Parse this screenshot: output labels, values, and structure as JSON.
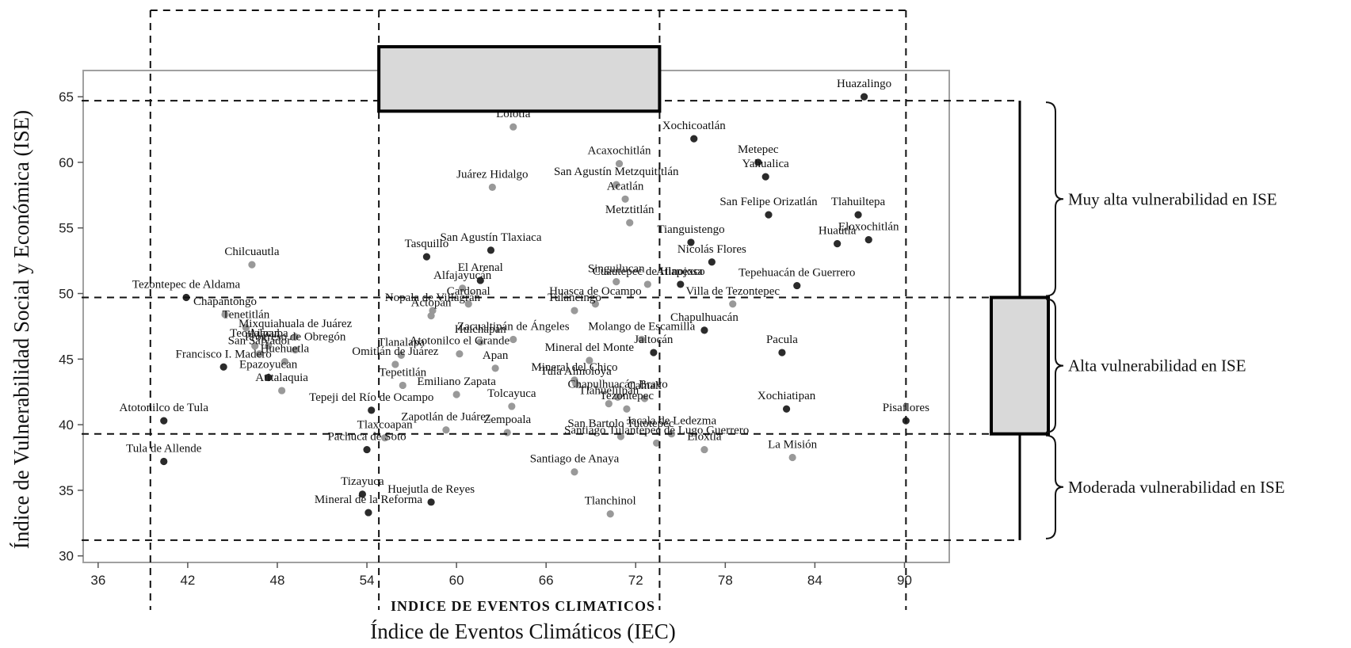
{
  "chart_data": {
    "type": "scatter",
    "title": "",
    "xlabel": "Índice de Eventos Climáticos (IEC)",
    "xlabel_inner": "INDICE DE EVENTOS CLIMATICOS",
    "ylabel": "Índice de Vulnerabilidad Social y Económica (ISE)",
    "xlim": [
      35,
      93
    ],
    "ylim": [
      29.5,
      67
    ],
    "xticks": [
      36,
      42,
      48,
      54,
      60,
      66,
      72,
      78,
      84,
      90
    ],
    "yticks": [
      30,
      35,
      40,
      45,
      50,
      55,
      60,
      65
    ],
    "grid": false,
    "thresholds": {
      "ise": [
        31.2,
        39.3,
        49.7,
        64.7
      ],
      "iec_dashed": [
        39.5,
        54.8,
        73.6,
        90.1
      ]
    },
    "bands": [
      {
        "label": "Muy alta vulnerabilidad en ISE",
        "range": [
          49.7,
          64.7
        ]
      },
      {
        "label": "Alta vulnerabilidad en ISE",
        "range": [
          39.3,
          49.7
        ]
      },
      {
        "label": "Moderada vulnerabilidad en ISE",
        "range": [
          31.2,
          39.3
        ]
      }
    ],
    "colors": {
      "dark": "#2b2b2b",
      "light": "#999999",
      "box_fill": "#d9d9d9",
      "frame": "#a0a0a0"
    },
    "points": [
      {
        "name": "Huazalingo",
        "x": 87.3,
        "y": 65.0,
        "shade": "dark"
      },
      {
        "name": "Xochicoatlán",
        "x": 75.9,
        "y": 61.8,
        "shade": "dark"
      },
      {
        "name": "Metepec",
        "x": 80.2,
        "y": 60.0,
        "shade": "dark"
      },
      {
        "name": "Yahualica",
        "x": 80.7,
        "y": 58.9,
        "shade": "dark"
      },
      {
        "name": "Acaxochitlán",
        "x": 70.9,
        "y": 59.9,
        "shade": "light"
      },
      {
        "name": "Acatlán",
        "x": 71.3,
        "y": 57.2,
        "shade": "light"
      },
      {
        "name": "Metztitlán",
        "x": 71.6,
        "y": 55.4,
        "shade": "light"
      },
      {
        "name": "San Felipe Orizatlán",
        "x": 80.9,
        "y": 56.0,
        "shade": "dark"
      },
      {
        "name": "Tlahuiltepa",
        "x": 86.9,
        "y": 56.0,
        "shade": "dark"
      },
      {
        "name": "Eloxochitlán",
        "x": 87.6,
        "y": 54.1,
        "shade": "dark"
      },
      {
        "name": "Huautla",
        "x": 85.5,
        "y": 53.8,
        "shade": "dark"
      },
      {
        "name": "Tianguistengo",
        "x": 75.7,
        "y": 53.9,
        "shade": "dark"
      },
      {
        "name": "Nicolás Flores",
        "x": 77.1,
        "y": 52.4,
        "shade": "dark"
      },
      {
        "name": "Tepehuacán de Guerrero",
        "x": 82.8,
        "y": 50.6,
        "shade": "dark"
      },
      {
        "name": "Atlapexco",
        "x": 75.0,
        "y": 50.7,
        "shade": "dark"
      },
      {
        "name": "Chilcuautla",
        "x": 46.3,
        "y": 52.2,
        "shade": "light"
      },
      {
        "name": "Tezontepec de Aldama",
        "x": 41.9,
        "y": 49.7,
        "shade": "dark"
      },
      {
        "name": "Juárez Hidalgo",
        "x": 62.4,
        "y": 58.1,
        "shade": "light"
      },
      {
        "name": "San Agustín Metzquititlán",
        "x": 70.7,
        "y": 58.3,
        "shade": "light"
      },
      {
        "name": "Tasquillo",
        "x": 58.0,
        "y": 52.8,
        "shade": "dark"
      },
      {
        "name": "San Agustín Tlaxiaca",
        "x": 62.3,
        "y": 53.3,
        "shade": "dark"
      },
      {
        "name": "El Arenal",
        "x": 61.6,
        "y": 51.0,
        "shade": "dark"
      },
      {
        "name": "Alfajayucán",
        "x": 60.4,
        "y": 50.4,
        "shade": "light"
      },
      {
        "name": "Singuilucan",
        "x": 70.7,
        "y": 50.9,
        "shade": "light"
      },
      {
        "name": "Cuautepec de Hinojosa",
        "x": 72.8,
        "y": 50.7,
        "shade": "light"
      },
      {
        "name": "Cardonal",
        "x": 60.8,
        "y": 49.2,
        "shade": "light"
      },
      {
        "name": "Huasca de Ocampo",
        "x": 69.3,
        "y": 49.2,
        "shade": "light"
      },
      {
        "name": "Tulancingo",
        "x": 67.9,
        "y": 48.7,
        "shade": "light"
      },
      {
        "name": "Nopala de Villagrán",
        "x": 58.4,
        "y": 48.7,
        "shade": "light"
      },
      {
        "name": "Actopan",
        "x": 58.3,
        "y": 48.3,
        "shade": "light"
      },
      {
        "name": "Chapantongo",
        "x": 44.5,
        "y": 48.4,
        "shade": "light"
      },
      {
        "name": "Tenetitlán",
        "x": 45.9,
        "y": 47.4,
        "shade": "light"
      },
      {
        "name": "Mixquiahuala de Juárez",
        "x": 49.2,
        "y": 46.7,
        "shade": "light"
      },
      {
        "name": "Teotlalpan",
        "x": 46.5,
        "y": 46.0,
        "shade": "light"
      },
      {
        "name": "Ajacuba",
        "x": 47.4,
        "y": 46.0,
        "shade": "light"
      },
      {
        "name": "Progreso de Obregón",
        "x": 49.2,
        "y": 45.7,
        "shade": "light"
      },
      {
        "name": "San Salvador",
        "x": 46.8,
        "y": 45.4,
        "shade": "light"
      },
      {
        "name": "Zacualtipán de Ángeles",
        "x": 63.8,
        "y": 46.5,
        "shade": "light"
      },
      {
        "name": "Huichapan",
        "x": 61.6,
        "y": 46.3,
        "shade": "light"
      },
      {
        "name": "Molango de Escamilla",
        "x": 72.4,
        "y": 46.5,
        "shade": "light"
      },
      {
        "name": "Tlanalapa",
        "x": 56.3,
        "y": 45.3,
        "shade": "light"
      },
      {
        "name": "Chapulhuacán",
        "x": 76.6,
        "y": 47.2,
        "shade": "dark"
      },
      {
        "name": "Villa de Tezontepec",
        "x": 78.5,
        "y": 49.2,
        "shade": "light"
      },
      {
        "name": "Pacula",
        "x": 81.8,
        "y": 45.5,
        "shade": "dark"
      },
      {
        "name": "Jaltocán",
        "x": 73.2,
        "y": 45.5,
        "shade": "dark"
      },
      {
        "name": "Atotonilco el Grande",
        "x": 60.2,
        "y": 45.4,
        "shade": "light"
      },
      {
        "name": "Francisco I. Madero",
        "x": 44.4,
        "y": 44.4,
        "shade": "dark"
      },
      {
        "name": "Huehuetla",
        "x": 48.5,
        "y": 44.8,
        "shade": "light"
      },
      {
        "name": "Omitlán de Juárez",
        "x": 55.9,
        "y": 44.6,
        "shade": "light"
      },
      {
        "name": "Mineral del Monte",
        "x": 68.9,
        "y": 44.9,
        "shade": "light"
      },
      {
        "name": "Apan",
        "x": 62.6,
        "y": 44.3,
        "shade": "light"
      },
      {
        "name": "Mineral del Chico",
        "x": 67.9,
        "y": 43.4,
        "shade": "light"
      },
      {
        "name": "Epazoyucan",
        "x": 47.4,
        "y": 43.6,
        "shade": "dark"
      },
      {
        "name": "Tepetitlán",
        "x": 56.4,
        "y": 43.0,
        "shade": "light"
      },
      {
        "name": "Emiliano Zapata",
        "x": 60.0,
        "y": 42.3,
        "shade": "light"
      },
      {
        "name": "Tula Almoloya",
        "x": 68.0,
        "y": 43.1,
        "shade": "light"
      },
      {
        "name": "Chapulhuacán Bravo",
        "x": 70.8,
        "y": 42.1,
        "shade": "light"
      },
      {
        "name": "Calnali",
        "x": 72.6,
        "y": 42.0,
        "shade": "light"
      },
      {
        "name": "Tlahuelilpan",
        "x": 70.2,
        "y": 41.6,
        "shade": "light"
      },
      {
        "name": "Xochiatipan",
        "x": 82.1,
        "y": 41.2,
        "shade": "dark"
      },
      {
        "name": "Atitalaquia",
        "x": 48.3,
        "y": 42.6,
        "shade": "light"
      },
      {
        "name": "Atotonilco de Tula",
        "x": 40.4,
        "y": 40.3,
        "shade": "dark"
      },
      {
        "name": "Tepeji del Río de Ocampo",
        "x": 54.3,
        "y": 41.1,
        "shade": "dark"
      },
      {
        "name": "Tolcayuca",
        "x": 63.7,
        "y": 41.4,
        "shade": "light"
      },
      {
        "name": "Tezontepec",
        "x": 71.4,
        "y": 41.2,
        "shade": "light"
      },
      {
        "name": "Pisaflores",
        "x": 90.1,
        "y": 40.3,
        "shade": "dark"
      },
      {
        "name": "Zempoala",
        "x": 63.4,
        "y": 39.4,
        "shade": "light"
      },
      {
        "name": "Tlaxcoapan",
        "x": 55.2,
        "y": 39.0,
        "shade": "light"
      },
      {
        "name": "Zapotlán de Juárez",
        "x": 59.3,
        "y": 39.6,
        "shade": "light"
      },
      {
        "name": "San Bartolo Tutotepec",
        "x": 71.0,
        "y": 39.1,
        "shade": "light"
      },
      {
        "name": "Santiago Tulantepec de Lugo Guerrero",
        "x": 73.4,
        "y": 38.6,
        "shade": "light"
      },
      {
        "name": "Jacala de Ledezma",
        "x": 74.4,
        "y": 39.3,
        "shade": "light"
      },
      {
        "name": "Pachuca de Soto",
        "x": 54.0,
        "y": 38.1,
        "shade": "dark"
      },
      {
        "name": "Eloxtla",
        "x": 76.6,
        "y": 38.1,
        "shade": "light"
      },
      {
        "name": "La Misión",
        "x": 82.5,
        "y": 37.5,
        "shade": "light"
      },
      {
        "name": "Tula de Allende",
        "x": 40.4,
        "y": 37.2,
        "shade": "dark"
      },
      {
        "name": "Santiago de Anaya",
        "x": 67.9,
        "y": 36.4,
        "shade": "light"
      },
      {
        "name": "Tizayuca",
        "x": 53.7,
        "y": 34.7,
        "shade": "dark"
      },
      {
        "name": "Huejutla de Reyes",
        "x": 58.3,
        "y": 34.1,
        "shade": "dark"
      },
      {
        "name": "Mineral de la Reforma",
        "x": 54.1,
        "y": 33.3,
        "shade": "dark"
      },
      {
        "name": "Tlanchinol",
        "x": 70.3,
        "y": 33.2,
        "shade": "light"
      },
      {
        "name": "Lolotla",
        "x": 63.8,
        "y": 62.7,
        "shade": "light"
      }
    ]
  }
}
